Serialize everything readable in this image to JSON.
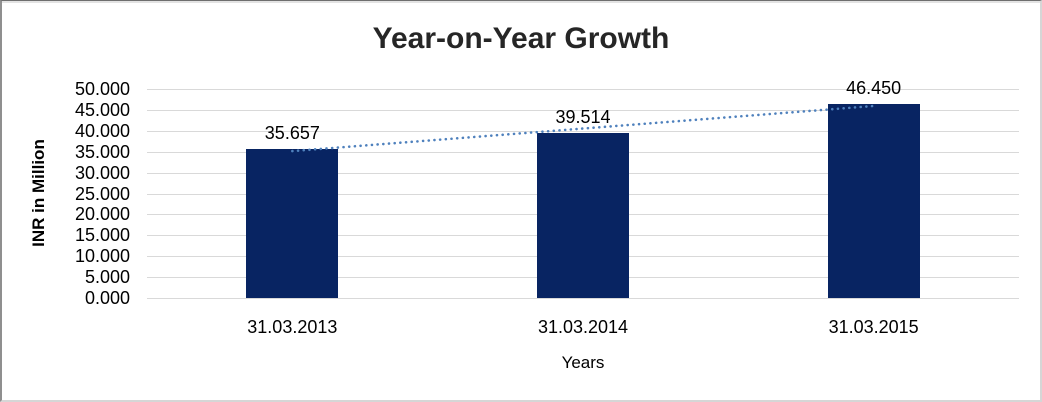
{
  "chart_data": {
    "type": "bar",
    "title": "Year-on-Year Growth",
    "xlabel": "Years",
    "ylabel": "INR in Million",
    "categories": [
      "31.03.2013",
      "31.03.2014",
      "31.03.2015"
    ],
    "values": [
      35.657,
      39.514,
      46.45
    ],
    "bar_labels": [
      "35.657",
      "39.514",
      "46.450"
    ],
    "ylim": [
      0,
      50
    ],
    "ytick_step": 5,
    "yticks": [
      {
        "v": 0,
        "label": "0.000"
      },
      {
        "v": 5,
        "label": "5.000"
      },
      {
        "v": 10,
        "label": "10.000"
      },
      {
        "v": 15,
        "label": "15.000"
      },
      {
        "v": 20,
        "label": "20.000"
      },
      {
        "v": 25,
        "label": "25.000"
      },
      {
        "v": 30,
        "label": "30.000"
      },
      {
        "v": 35,
        "label": "35.000"
      },
      {
        "v": 40,
        "label": "40.000"
      },
      {
        "v": 45,
        "label": "45.000"
      },
      {
        "v": 50,
        "label": "50.000"
      }
    ],
    "grid": "horizontal",
    "legend": "none",
    "trendline": {
      "type": "linear",
      "style": "dotted"
    },
    "colors": {
      "bar": "#082462",
      "trendline": "#4F81BD",
      "gridline": "#D9D9D9",
      "title_text": "#262626",
      "axis_text": "#000000"
    }
  }
}
